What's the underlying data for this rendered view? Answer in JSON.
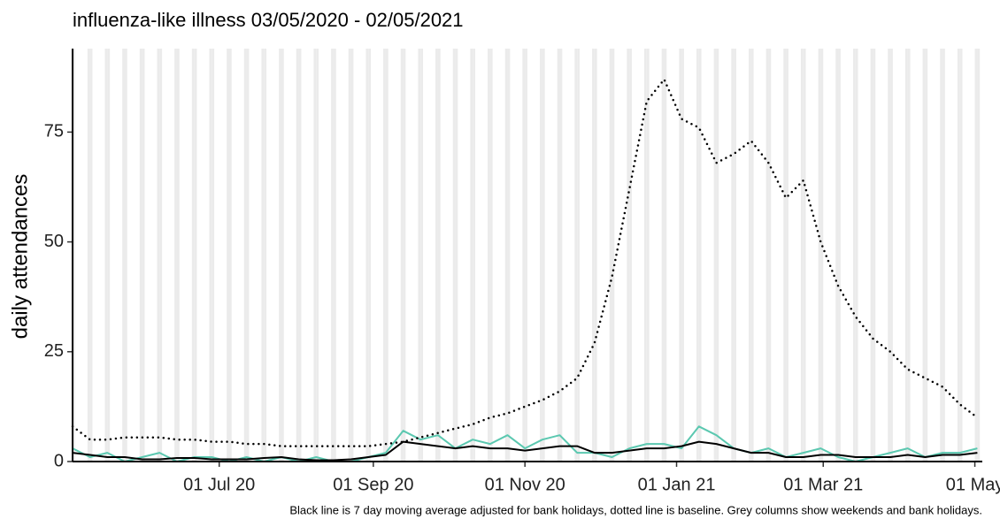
{
  "chart_data": {
    "type": "line",
    "title": "influenza-like illness 03/05/2020 - 02/05/2021",
    "y_label": "daily attendances",
    "caption": "Black line is 7 day moving average adjusted for bank holidays, dotted line is baseline. Grey columns show weekends and bank holidays.",
    "x": [
      "2020-05-03",
      "2020-05-10",
      "2020-05-17",
      "2020-05-24",
      "2020-05-31",
      "2020-06-07",
      "2020-06-14",
      "2020-06-21",
      "2020-06-28",
      "2020-07-05",
      "2020-07-12",
      "2020-07-19",
      "2020-07-26",
      "2020-08-02",
      "2020-08-09",
      "2020-08-16",
      "2020-08-23",
      "2020-08-30",
      "2020-09-06",
      "2020-09-13",
      "2020-09-20",
      "2020-09-27",
      "2020-10-04",
      "2020-10-11",
      "2020-10-18",
      "2020-10-25",
      "2020-11-01",
      "2020-11-08",
      "2020-11-15",
      "2020-11-22",
      "2020-11-29",
      "2020-12-06",
      "2020-12-13",
      "2020-12-20",
      "2020-12-27",
      "2021-01-03",
      "2021-01-10",
      "2021-01-17",
      "2021-01-24",
      "2021-01-31",
      "2021-02-07",
      "2021-02-14",
      "2021-02-21",
      "2021-02-28",
      "2021-03-07",
      "2021-03-14",
      "2021-03-21",
      "2021-03-28",
      "2021-04-04",
      "2021-04-11",
      "2021-04-18",
      "2021-04-25",
      "2021-05-02"
    ],
    "series": [
      {
        "color": "#5bc8b0",
        "style": "solid",
        "width": 2,
        "values": [
          3,
          1,
          2,
          0,
          1,
          2,
          0,
          1,
          1,
          0,
          1,
          0,
          1,
          0,
          1,
          0,
          0,
          1,
          2,
          7,
          5,
          6,
          3,
          5,
          4,
          6,
          3,
          5,
          6,
          2,
          2,
          1,
          3,
          4,
          4,
          3,
          8,
          6,
          3,
          2,
          3,
          1,
          2,
          3,
          1,
          0,
          1,
          2,
          3,
          1,
          2,
          2,
          3
        ]
      },
      {
        "color": "#000000",
        "style": "solid",
        "width": 2,
        "values": [
          2,
          1.5,
          1,
          1,
          0.5,
          0.5,
          0.8,
          0.8,
          0.5,
          0.5,
          0.5,
          0.8,
          1,
          0.5,
          0.3,
          0.3,
          0.5,
          1,
          1.5,
          4.5,
          4,
          3.5,
          3,
          3.5,
          3,
          3,
          2.5,
          3,
          3.5,
          3.5,
          2,
          2,
          2.5,
          3,
          3,
          3.5,
          4.5,
          4,
          3,
          2,
          2,
          1,
          1,
          1.5,
          1.5,
          1,
          1,
          1,
          1.5,
          1,
          1.5,
          1.5,
          2
        ]
      },
      {
        "color": "#000000",
        "style": "dotted",
        "width": 2.5,
        "values": [
          8,
          5,
          5,
          5.5,
          5.5,
          5.5,
          5,
          5,
          4.5,
          4.5,
          4,
          4,
          3.5,
          3.5,
          3.5,
          3.5,
          3.5,
          3.5,
          4,
          4.5,
          5.5,
          6.5,
          7.5,
          8.5,
          10,
          11,
          12.5,
          14,
          16,
          19,
          27,
          42,
          62,
          82,
          87,
          78,
          76,
          68,
          70,
          73,
          68,
          60,
          64,
          50,
          40,
          33,
          28,
          25,
          21,
          19,
          17,
          13,
          10
        ]
      }
    ],
    "xlim": [
      "2020-05-03",
      "2021-05-04"
    ],
    "xticks": [
      {
        "value": "2020-07-01",
        "label": "01 Jul 20"
      },
      {
        "value": "2020-09-01",
        "label": "01 Sep 20"
      },
      {
        "value": "2020-11-01",
        "label": "01 Nov 20"
      },
      {
        "value": "2021-01-01",
        "label": "01 Jan 21"
      },
      {
        "value": "2021-03-01",
        "label": "01 Mar 21"
      },
      {
        "value": "2021-05-01",
        "label": "01 May"
      }
    ],
    "ylim": [
      0,
      94
    ],
    "yticks": [
      0,
      25,
      50,
      75
    ],
    "weekend_shading": true,
    "grid": false
  }
}
